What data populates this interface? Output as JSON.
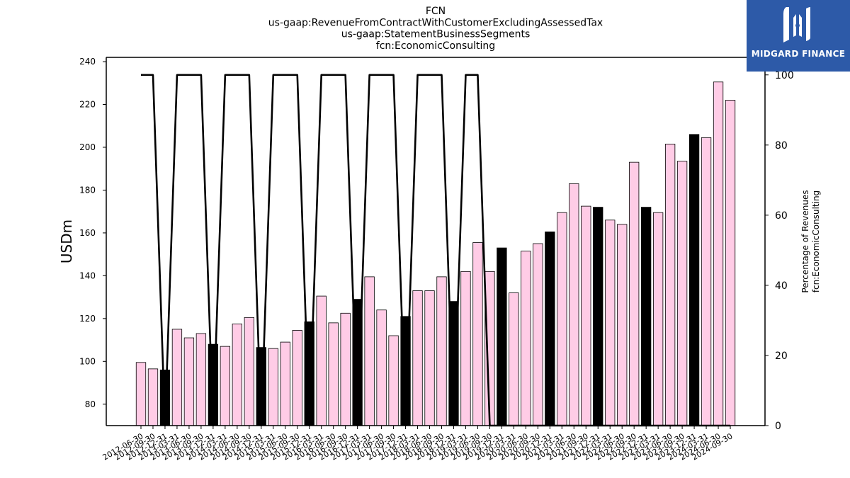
{
  "logo": {
    "text": "MIDGARD FINANCE"
  },
  "chart_data": {
    "type": "bar",
    "title": [
      "FCN",
      "us-gaap:RevenueFromContractWithCustomerExcludingAssessedTax",
      "us-gaap:StatementBusinessSegments",
      "fcn:EconomicConsulting"
    ],
    "ylabel": "USDm",
    "y2label": [
      "Percentage of Revenues",
      "fcn:EconomicConsulting"
    ],
    "ylim": [
      70,
      242
    ],
    "y2lim": [
      0,
      105
    ],
    "yticks": [
      80,
      100,
      120,
      140,
      160,
      180,
      200,
      220,
      240
    ],
    "y2ticks": [
      0,
      20,
      40,
      60,
      80,
      100
    ],
    "categories": [
      "2012-06-30",
      "2012-09-30",
      "2012-12-31",
      "2013-03-31",
      "2013-06-30",
      "2013-09-30",
      "2013-12-31",
      "2014-03-31",
      "2014-06-30",
      "2014-09-30",
      "2014-12-31",
      "2015-03-31",
      "2015-06-30",
      "2015-09-30",
      "2015-12-31",
      "2016-03-31",
      "2016-06-30",
      "2016-09-30",
      "2016-12-31",
      "2017-03-31",
      "2017-06-30",
      "2017-09-30",
      "2017-12-31",
      "2018-03-31",
      "2018-06-30",
      "2018-09-30",
      "2018-12-31",
      "2019-03-31",
      "2019-06-30",
      "2019-09-30",
      "2019-12-31",
      "2020-03-31",
      "2020-06-30",
      "2020-09-30",
      "2020-12-31",
      "2021-03-31",
      "2021-06-30",
      "2021-09-30",
      "2021-12-31",
      "2022-03-31",
      "2022-06-30",
      "2022-09-30",
      "2022-12-31",
      "2023-03-31",
      "2023-06-30",
      "2023-09-30",
      "2023-12-31",
      "2024-03-31",
      "2024-06-30",
      "2024-09-30"
    ],
    "series": [
      {
        "values": [
          99.5,
          96.5,
          96,
          115,
          111,
          113,
          108,
          107,
          117.5,
          120.5,
          106.5,
          106,
          109,
          114.5,
          118.5,
          130.5,
          118,
          122.5,
          129,
          139.5,
          124,
          112,
          121,
          133,
          133,
          139.5,
          128,
          142,
          155.5,
          142,
          153,
          132,
          151.5,
          155,
          160.5,
          169.5,
          183,
          172.5,
          172,
          166,
          164,
          193,
          172,
          169.5,
          201.5,
          193.5,
          206,
          204.5,
          230.5,
          222
        ],
        "highlight": [
          false,
          false,
          true,
          false,
          false,
          false,
          true,
          false,
          false,
          false,
          true,
          false,
          false,
          false,
          true,
          false,
          false,
          false,
          true,
          false,
          false,
          false,
          true,
          false,
          false,
          false,
          true,
          false,
          false,
          false,
          true,
          false,
          false,
          false,
          true,
          false,
          false,
          false,
          true,
          false,
          false,
          false,
          true,
          false,
          false,
          false,
          true,
          false,
          false,
          false
        ]
      },
      {
        "type": "line",
        "axis": "right",
        "values": [
          100,
          100,
          0,
          100,
          100,
          100,
          0,
          100,
          100,
          100,
          0,
          100,
          100,
          100,
          0,
          100,
          100,
          100,
          0,
          100,
          100,
          100,
          0,
          100,
          100,
          100,
          0,
          100,
          100,
          0,
          0,
          0,
          0,
          0,
          0,
          0,
          0,
          0,
          0,
          0,
          0,
          0,
          0,
          0,
          0,
          0,
          0,
          0,
          0,
          0
        ]
      }
    ],
    "colors": {
      "bar": "#ffcce6",
      "highlight": "#000000",
      "line": "#000000"
    },
    "grid": false
  }
}
